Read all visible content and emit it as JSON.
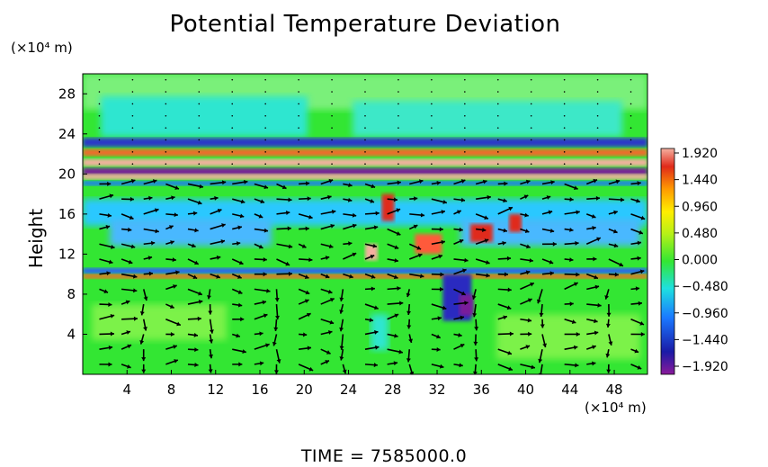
{
  "chart_data": {
    "type": "heatmap",
    "title": "Potential Temperature Deviation",
    "ylabel": "Height",
    "y_unit": "(×10⁴ m)",
    "x_unit": "(×10⁴ m)",
    "xlim": [
      0,
      51
    ],
    "ylim": [
      0,
      30
    ],
    "x_ticks": [
      4,
      8,
      12,
      16,
      20,
      24,
      28,
      32,
      36,
      40,
      44,
      48
    ],
    "y_ticks": [
      4,
      8,
      12,
      16,
      20,
      24,
      28
    ],
    "colorbar": {
      "ticks": [
        "1.920",
        "1.440",
        "0.960",
        "0.480",
        "0.000",
        "−0.480",
        "−0.960",
        "−1.440",
        "−1.920"
      ],
      "min": -1.92,
      "max": 1.92
    },
    "overlay": "wind vector arrows",
    "footer": "TIME  =  7585000.0"
  },
  "colors": {
    "field_background": "#33e633",
    "arrows": "#000000"
  }
}
